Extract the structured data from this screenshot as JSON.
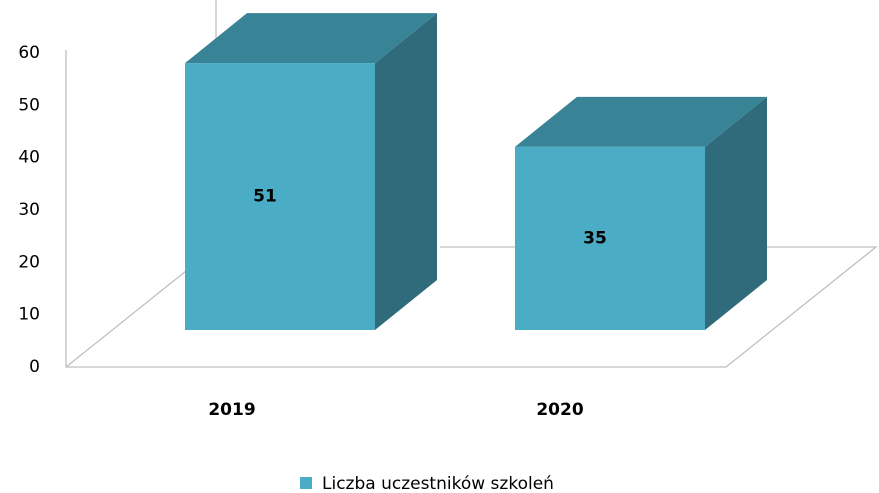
{
  "chart_data": {
    "type": "bar3d",
    "categories": [
      "2019",
      "2020"
    ],
    "series": [
      {
        "name": "Liczba uczestników szkoleń",
        "color": "#4bacc6",
        "values": [
          51,
          35
        ]
      }
    ],
    "ylim": [
      0,
      60
    ],
    "yticks": [
      0,
      10,
      20,
      30,
      40,
      50,
      60
    ],
    "grid": false,
    "legend": "bottom"
  }
}
